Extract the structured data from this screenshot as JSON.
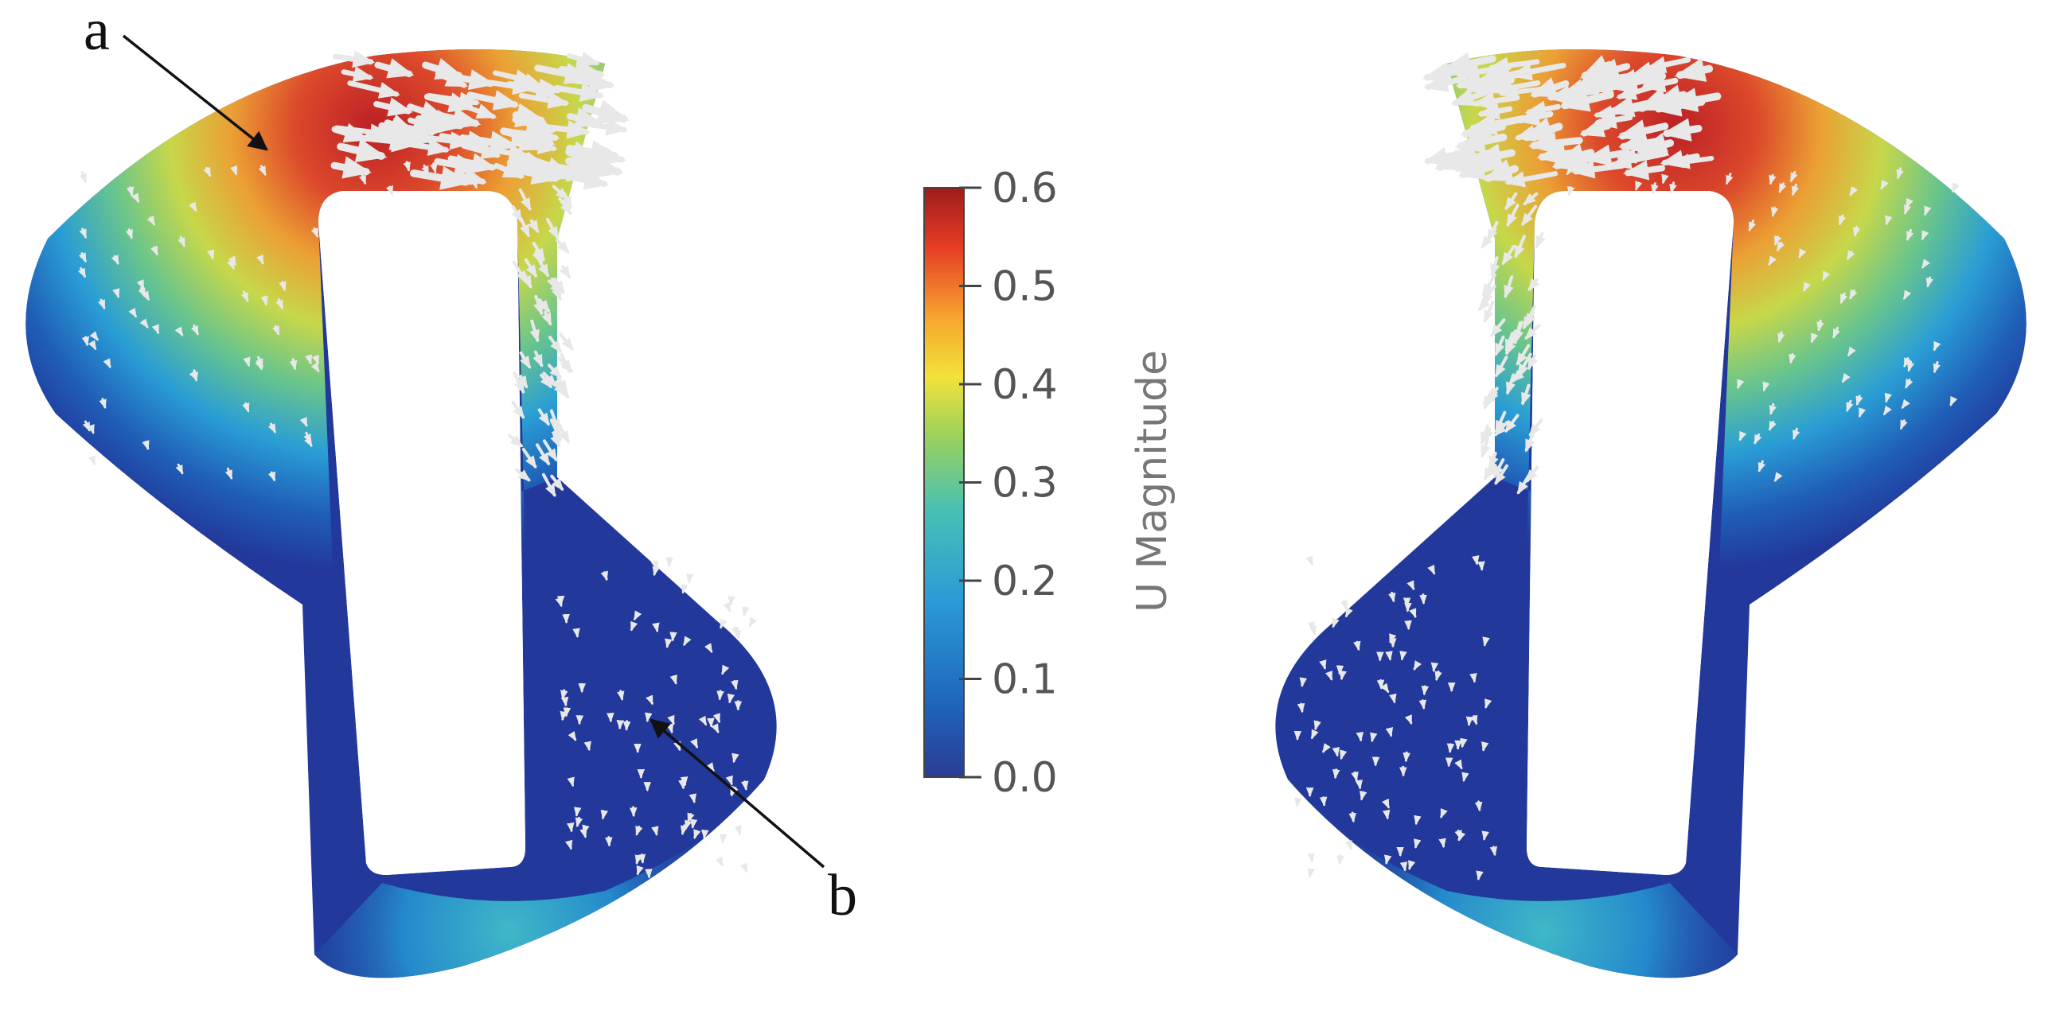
{
  "figure": {
    "markers": [
      {
        "id": "a",
        "label": "a"
      },
      {
        "id": "b",
        "label": "b"
      }
    ]
  },
  "colorbar": {
    "title": "U Magnitude",
    "min": 0.0,
    "max": 0.6,
    "ticks": [
      "0.6",
      "0.5",
      "0.4",
      "0.3",
      "0.2",
      "0.1",
      "0.0"
    ],
    "tick_values": [
      0.6,
      0.5,
      0.4,
      0.3,
      0.2,
      0.1,
      0.0
    ],
    "colormap": [
      "#2a3c93",
      "#1f64ba",
      "#2a9bd6",
      "#46c0b6",
      "#9cd25a",
      "#f3e23a",
      "#f6a52f",
      "#e53c24",
      "#9e1c1b"
    ]
  },
  "colors": {
    "deep_blue": "#22389a",
    "arrow": "#e8e8e8",
    "marker_arrow": "#111111"
  }
}
